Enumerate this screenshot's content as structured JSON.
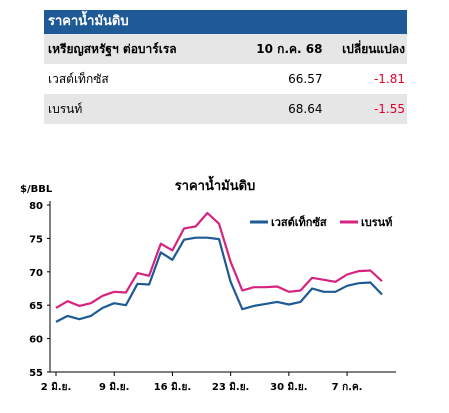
{
  "table": {
    "title": "ราคาน้ำมันดิบ",
    "header": {
      "col1": "เหรียญสหรัฐฯ ต่อบาร์เรล",
      "col2": "10 ก.ค. 68",
      "col3": "เปลี่ยนแปลง"
    },
    "rows": [
      {
        "name": "เวสต์เท็กซัส",
        "value": "66.57",
        "change": "-1.81"
      },
      {
        "name": "เบรนท์",
        "value": "68.64",
        "change": "-1.55"
      }
    ]
  },
  "colors": {
    "header_bg": "#1e5a96",
    "wti": "#1e5a96",
    "brent": "#d6237f",
    "negative": "#e4002b"
  },
  "chart_data": {
    "type": "line",
    "title": "ราคาน้ำมันดิบ",
    "ylabel": "$/BBL",
    "ylim": [
      55,
      80
    ],
    "yticks": [
      55,
      60,
      65,
      70,
      75,
      80
    ],
    "xticklabels": [
      "2 มิ.ย.",
      "9 มิ.ย.",
      "16 มิ.ย.",
      "23 มิ.ย.",
      "30 มิ.ย.",
      "7 ก.ค."
    ],
    "x": [
      "2 มิ.ย.",
      "3 มิ.ย.",
      "4 มิ.ย.",
      "5 มิ.ย.",
      "6 มิ.ย.",
      "9 มิ.ย.",
      "10 มิ.ย.",
      "11 มิ.ย.",
      "12 มิ.ย.",
      "13 มิ.ย.",
      "16 มิ.ย.",
      "17 มิ.ย.",
      "18 มิ.ย.",
      "19 มิ.ย.",
      "20 มิ.ย.",
      "23 มิ.ย.",
      "24 มิ.ย.",
      "25 มิ.ย.",
      "26 มิ.ย.",
      "27 มิ.ย.",
      "30 มิ.ย.",
      "1 ก.ค.",
      "2 ก.ค.",
      "3 ก.ค.",
      "4 ก.ค.",
      "7 ก.ค.",
      "8 ก.ค.",
      "9 ก.ค.",
      "10 ก.ค."
    ],
    "series": [
      {
        "name": "เวสต์เท็กซัส",
        "color": "#1e5a96",
        "values": [
          62.5,
          63.4,
          62.9,
          63.4,
          64.6,
          65.3,
          65.0,
          68.2,
          68.1,
          72.9,
          71.8,
          74.8,
          75.1,
          75.1,
          74.9,
          68.5,
          64.4,
          64.9,
          65.2,
          65.5,
          65.1,
          65.5,
          67.5,
          67.0,
          67.0,
          67.9,
          68.3,
          68.4,
          66.6
        ]
      },
      {
        "name": "เบรนท์",
        "color": "#d6237f",
        "values": [
          64.6,
          65.6,
          64.9,
          65.3,
          66.4,
          67.0,
          66.9,
          69.8,
          69.4,
          74.2,
          73.2,
          76.5,
          76.8,
          78.8,
          77.2,
          71.5,
          67.2,
          67.7,
          67.7,
          67.8,
          67.0,
          67.2,
          69.1,
          68.8,
          68.5,
          69.6,
          70.1,
          70.2,
          68.6
        ]
      }
    ],
    "legend_position": "top-right",
    "grid": false
  }
}
